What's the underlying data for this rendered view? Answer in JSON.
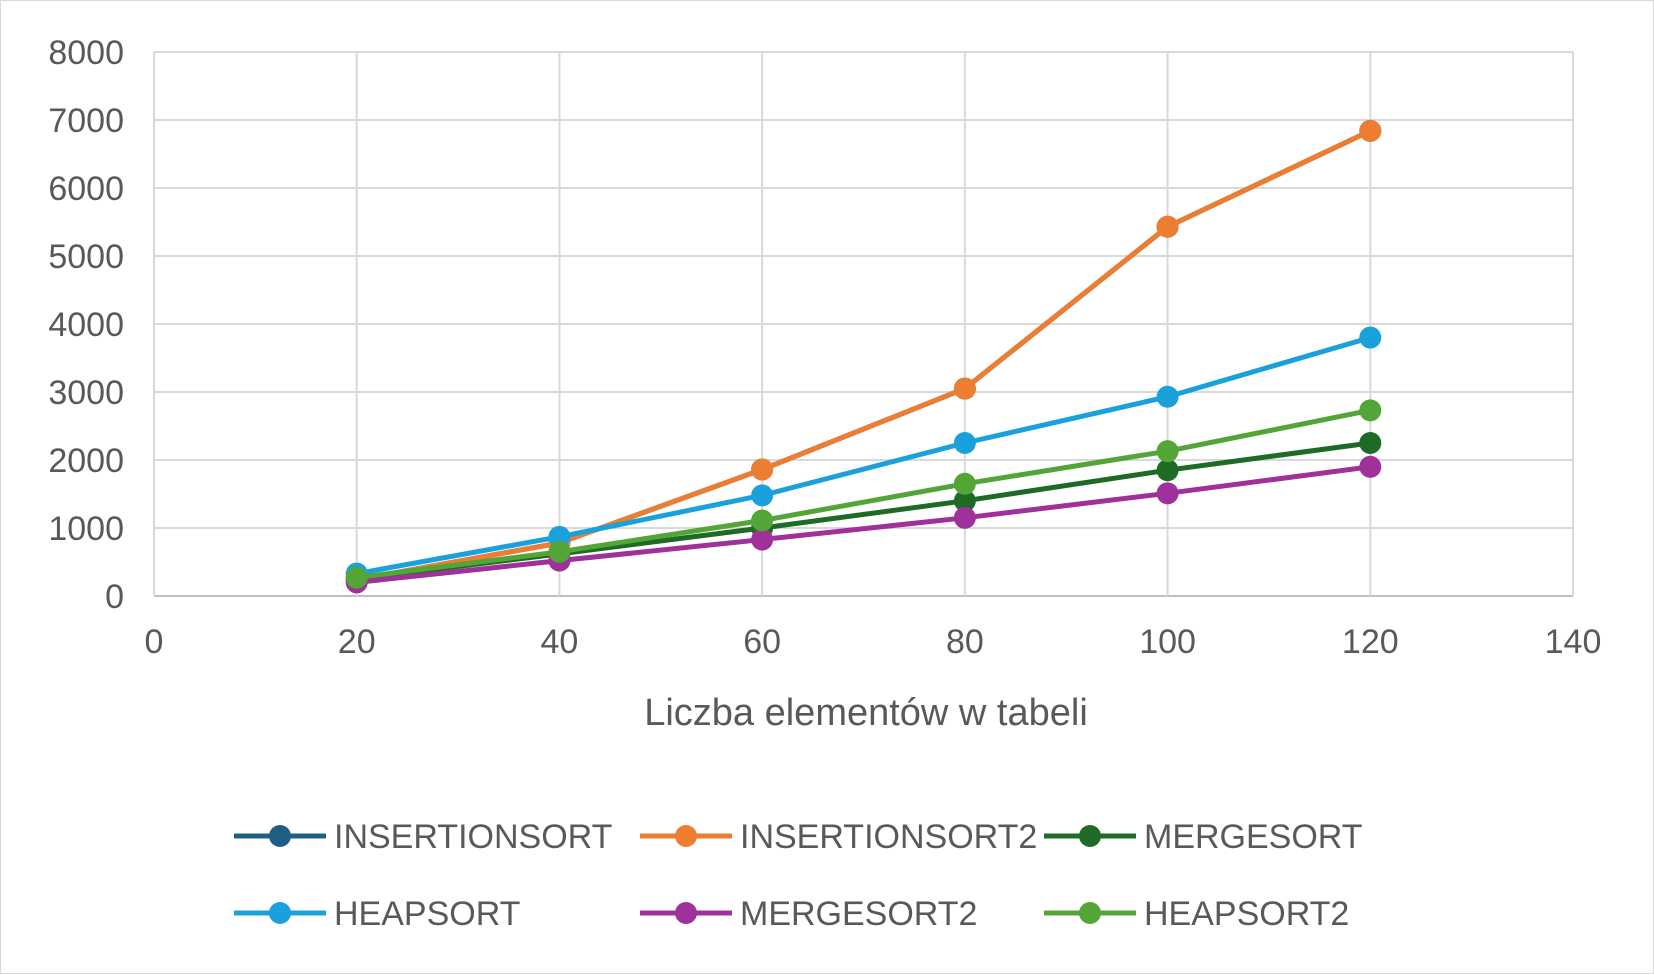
{
  "chart_data": {
    "type": "line",
    "title": "",
    "xlabel": "Liczba elementów w tabeli",
    "ylabel": "",
    "xlim": [
      0,
      140
    ],
    "ylim": [
      0,
      8000
    ],
    "x_ticks": [
      0,
      20,
      40,
      60,
      80,
      100,
      120,
      140
    ],
    "y_ticks": [
      0,
      1000,
      2000,
      3000,
      4000,
      5000,
      6000,
      7000,
      8000
    ],
    "grid": true,
    "legend_position": "bottom",
    "x": [
      20,
      40,
      60,
      80,
      100,
      120
    ],
    "series": [
      {
        "name": "INSERTIONSORT",
        "color": "#1f5f86",
        "values": [
          240,
          780,
          1860,
          3050,
          5430,
          6840
        ]
      },
      {
        "name": "INSERTIONSORT2",
        "color": "#ed7d31",
        "values": [
          240,
          780,
          1860,
          3050,
          5430,
          6840
        ]
      },
      {
        "name": "MERGESORT",
        "color": "#1e6b25",
        "values": [
          250,
          620,
          1000,
          1400,
          1850,
          2250
        ]
      },
      {
        "name": "HEAPSORT",
        "color": "#1aa1dc",
        "values": [
          330,
          870,
          1480,
          2250,
          2930,
          3800
        ]
      },
      {
        "name": "MERGESORT2",
        "color": "#a0309a",
        "values": [
          200,
          520,
          830,
          1150,
          1510,
          1900
        ]
      },
      {
        "name": "HEAPSORT2",
        "color": "#53a537",
        "values": [
          270,
          650,
          1110,
          1650,
          2130,
          2730
        ]
      }
    ]
  }
}
